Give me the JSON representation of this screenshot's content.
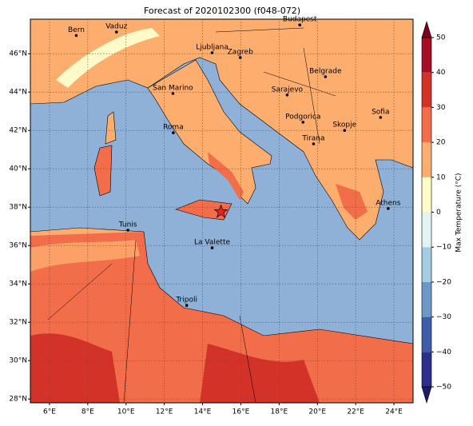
{
  "map": {
    "title": "Forecast of 2020102300 (f048-072)",
    "xlim": [
      5,
      25
    ],
    "ylim": [
      27.8,
      47.8
    ],
    "grid": true,
    "xticks": [
      {
        "value": 6,
        "label": "6°E"
      },
      {
        "value": 8,
        "label": "8°E"
      },
      {
        "value": 10,
        "label": "10°E"
      },
      {
        "value": 12,
        "label": "12°E"
      },
      {
        "value": 14,
        "label": "14°E"
      },
      {
        "value": 16,
        "label": "16°E"
      },
      {
        "value": 18,
        "label": "18°E"
      },
      {
        "value": 20,
        "label": "20°E"
      },
      {
        "value": 22,
        "label": "22°E"
      },
      {
        "value": 24,
        "label": "24°E"
      }
    ],
    "yticks": [
      {
        "value": 28,
        "label": "28°N"
      },
      {
        "value": 30,
        "label": "30°N"
      },
      {
        "value": 32,
        "label": "32°N"
      },
      {
        "value": 34,
        "label": "34°N"
      },
      {
        "value": 36,
        "label": "36°N"
      },
      {
        "value": 38,
        "label": "38°N"
      },
      {
        "value": 40,
        "label": "40°N"
      },
      {
        "value": 42,
        "label": "42°N"
      },
      {
        "value": 44,
        "label": "44°N"
      },
      {
        "value": 46,
        "label": "46°N"
      }
    ],
    "cities": [
      {
        "name": "Bern",
        "lon": 7.4,
        "lat": 46.95
      },
      {
        "name": "Vaduz",
        "lon": 9.5,
        "lat": 47.13
      },
      {
        "name": "Budapest",
        "lon": 19.08,
        "lat": 47.5
      },
      {
        "name": "Ljubljana",
        "lon": 14.5,
        "lat": 46.05
      },
      {
        "name": "Zagreb",
        "lon": 15.97,
        "lat": 45.8
      },
      {
        "name": "San Marino",
        "lon": 12.45,
        "lat": 43.93
      },
      {
        "name": "Belgrade",
        "lon": 20.42,
        "lat": 44.8
      },
      {
        "name": "Sarajevo",
        "lon": 18.42,
        "lat": 43.85
      },
      {
        "name": "Sofia",
        "lon": 23.3,
        "lat": 42.68
      },
      {
        "name": "Podgorica",
        "lon": 19.25,
        "lat": 42.43
      },
      {
        "name": "Skopje",
        "lon": 21.42,
        "lat": 42.0
      },
      {
        "name": "Roma",
        "lon": 12.47,
        "lat": 41.88
      },
      {
        "name": "Tirana",
        "lon": 19.8,
        "lat": 41.3
      },
      {
        "name": "Athens",
        "lon": 23.7,
        "lat": 37.93
      },
      {
        "name": "Tunis",
        "lon": 10.1,
        "lat": 36.8
      },
      {
        "name": "La Valette",
        "lon": 14.5,
        "lat": 35.88
      },
      {
        "name": "Tripoli",
        "lon": 13.17,
        "lat": 32.88
      }
    ],
    "marker": {
      "lon": 14.96,
      "lat": 37.76,
      "color": "#e8231f"
    },
    "colorbar": {
      "label": "Max Temperature (°C)",
      "clim": [
        -50,
        50
      ],
      "ticks": [
        {
          "value": -50,
          "label": "−50"
        },
        {
          "value": -40,
          "label": "−40"
        },
        {
          "value": -30,
          "label": "−30"
        },
        {
          "value": -20,
          "label": "−20"
        },
        {
          "value": -10,
          "label": "−10"
        },
        0,
        10,
        20,
        30,
        40,
        50
      ],
      "colors": [
        "#2b2f8c",
        "#3c5ea8",
        "#6d97c6",
        "#a3cbe2",
        "#e3f2f2",
        "#fefbc8",
        "#fdad6e",
        "#f26d4a",
        "#d23228",
        "#a50f26"
      ],
      "under_color": "#1d1a6e",
      "over_color": "#7d0021"
    }
  }
}
